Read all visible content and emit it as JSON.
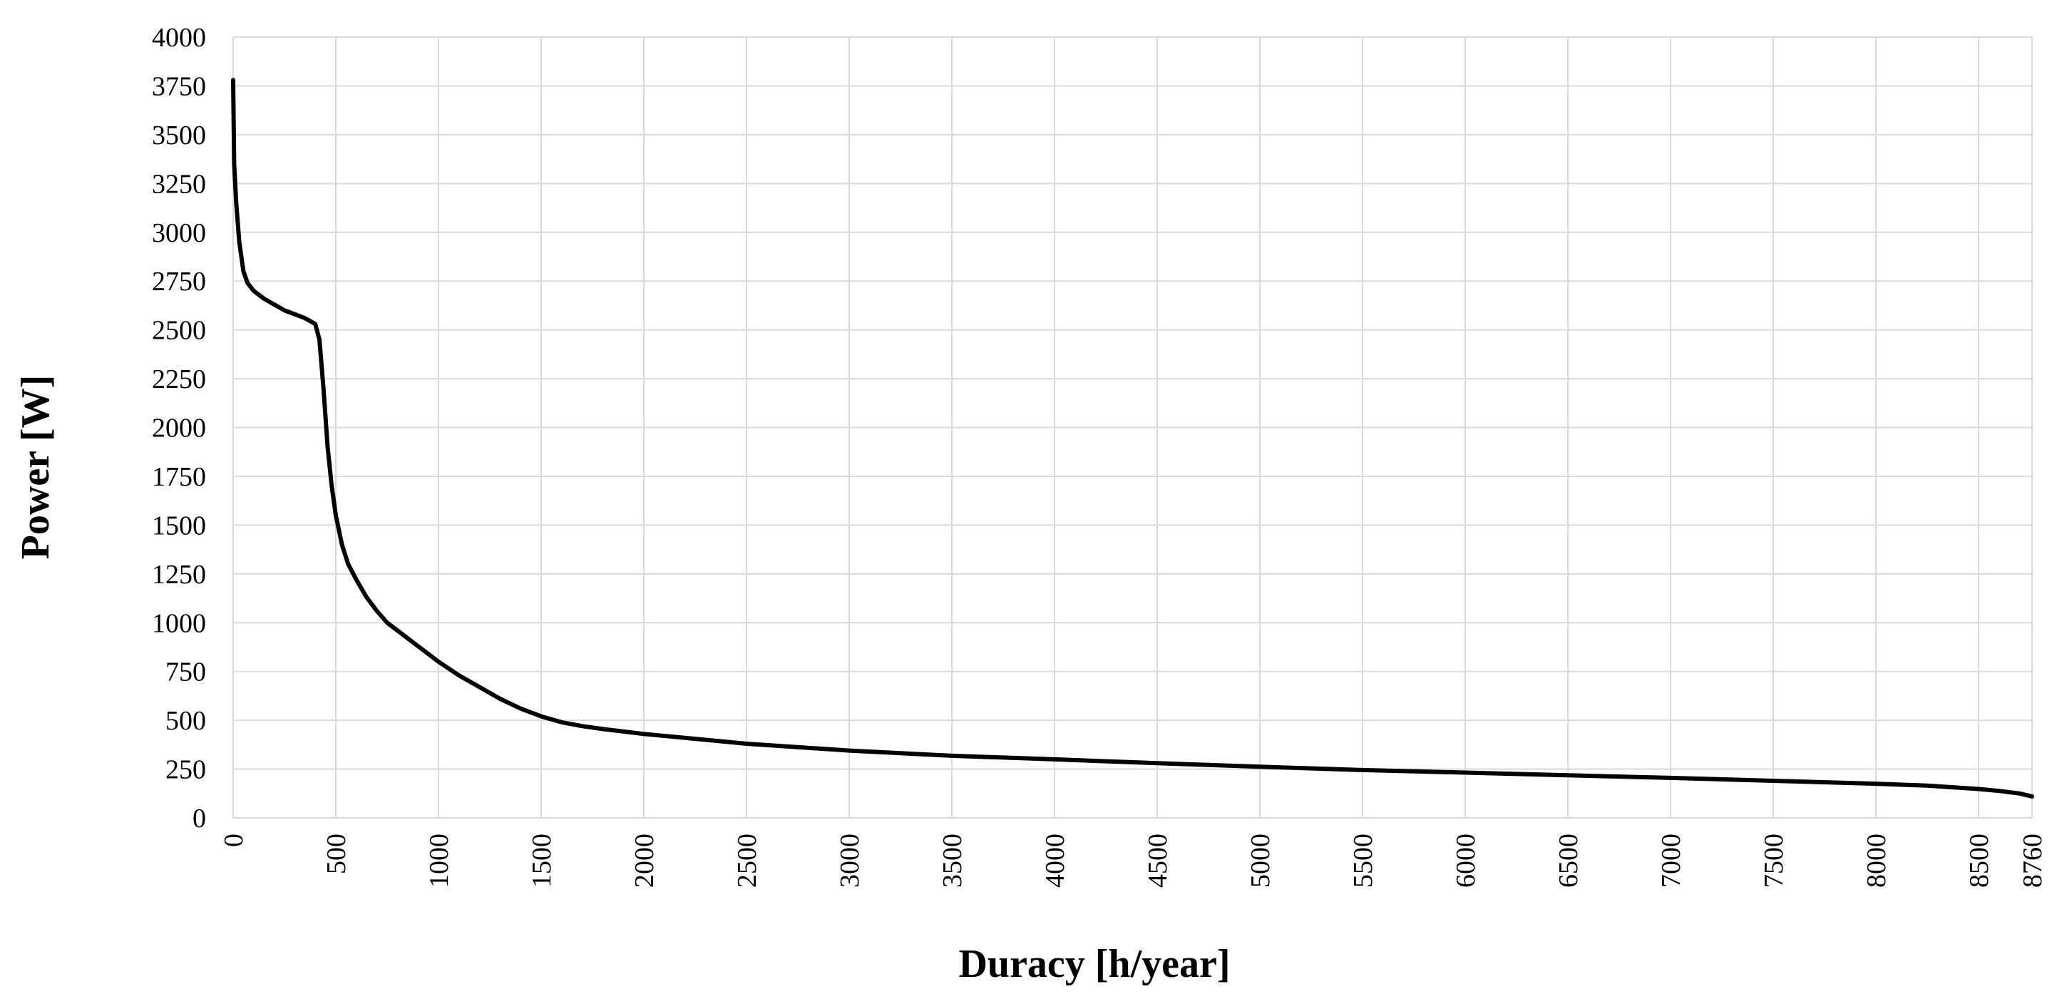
{
  "chart_data": {
    "type": "line",
    "title": "",
    "xlabel": "Duracy [h/year]",
    "ylabel": "Power [W]",
    "xlim": [
      0,
      8760
    ],
    "ylim": [
      0,
      4000
    ],
    "grid": true,
    "legend": "none",
    "x_ticks": [
      "0",
      "500",
      "1000",
      "1500",
      "2000",
      "2500",
      "3000",
      "3500",
      "4000",
      "4500",
      "5000",
      "5500",
      "6000",
      "6500",
      "7000",
      "7500",
      "8000",
      "8500",
      "8760"
    ],
    "y_ticks": [
      "0",
      "250",
      "500",
      "750",
      "1000",
      "1250",
      "1500",
      "1750",
      "2000",
      "2250",
      "2500",
      "2750",
      "3000",
      "3250",
      "3500",
      "3750",
      "4000"
    ],
    "series": [
      {
        "color": "#000000",
        "x": [
          0,
          5,
          15,
          30,
          50,
          70,
          100,
          150,
          200,
          250,
          300,
          350,
          400,
          420,
          440,
          460,
          480,
          500,
          530,
          560,
          600,
          650,
          700,
          750,
          800,
          900,
          1000,
          1100,
          1200,
          1300,
          1400,
          1500,
          1600,
          1700,
          1800,
          2000,
          2250,
          2500,
          3000,
          3500,
          4000,
          4500,
          5000,
          5500,
          6000,
          6500,
          7000,
          7500,
          8000,
          8250,
          8500,
          8600,
          8700,
          8760
        ],
        "y": [
          3780,
          3350,
          3150,
          2950,
          2800,
          2740,
          2700,
          2660,
          2630,
          2600,
          2580,
          2560,
          2530,
          2450,
          2200,
          1900,
          1700,
          1550,
          1400,
          1300,
          1220,
          1130,
          1060,
          1000,
          960,
          880,
          800,
          730,
          670,
          610,
          560,
          520,
          490,
          470,
          455,
          430,
          405,
          380,
          345,
          318,
          300,
          280,
          262,
          245,
          232,
          218,
          205,
          190,
          175,
          165,
          148,
          138,
          125,
          110
        ]
      }
    ]
  }
}
